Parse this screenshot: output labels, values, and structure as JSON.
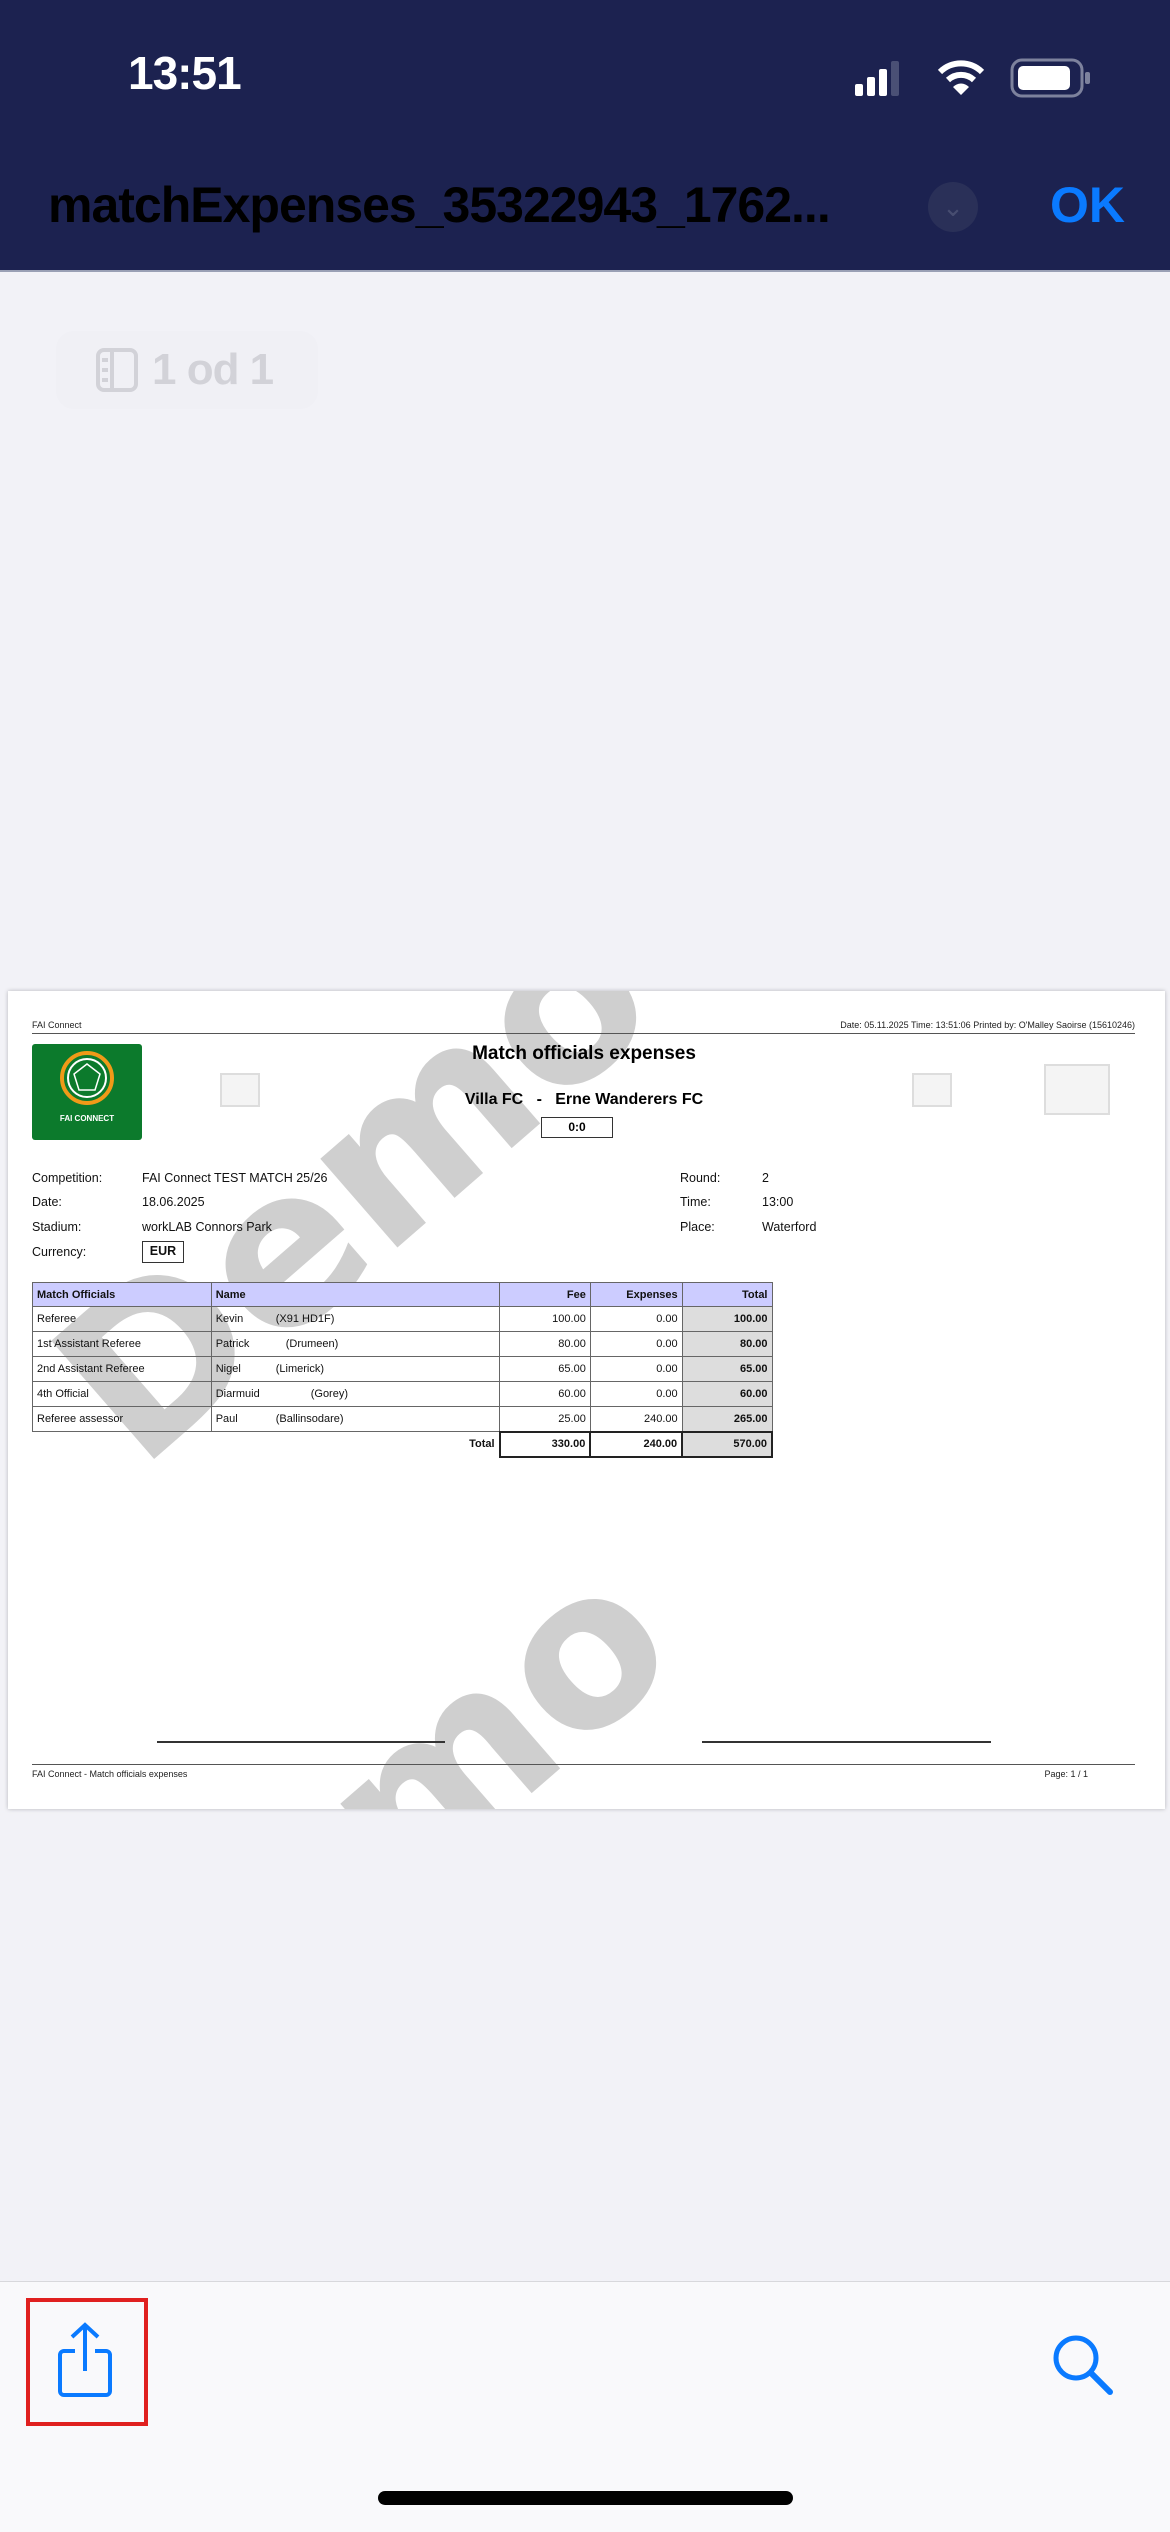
{
  "status_bar": {
    "time": "13:51"
  },
  "nav": {
    "title": "matchExpenses_35322943_1762...",
    "ok_label": "OK"
  },
  "page_indicator": {
    "label": "1 od 1"
  },
  "document": {
    "header_left": "FAI Connect",
    "header_right": "Date: 05.11.2025  Time: 13:51:06    Printed by: O'Malley Saoirse (15610246)",
    "logo_text": "FAI CONNECT",
    "title": "Match officials expenses",
    "home_team": "Villa FC",
    "separator": "-",
    "away_team": "Erne Wanderers FC",
    "score": "0:0",
    "info_left": [
      {
        "label": "Competition:",
        "value": "FAI Connect TEST MATCH 25/26"
      },
      {
        "label": "Date:",
        "value": "18.06.2025"
      },
      {
        "label": "Stadium:",
        "value": "workLAB Connors Park"
      },
      {
        "label": "Currency:",
        "value": "EUR"
      }
    ],
    "info_right": [
      {
        "label": "Round:",
        "value": "2"
      },
      {
        "label": "Time:",
        "value": "13:00"
      },
      {
        "label": "Place:",
        "value": "Waterford"
      }
    ],
    "table": {
      "headers": [
        "Match Officials",
        "Name",
        "Fee",
        "Expenses",
        "Total"
      ],
      "rows": [
        {
          "role": "Referee",
          "name": "Kevin",
          "place": "(X91 HD1F)",
          "fee": "100.00",
          "expenses": "0.00",
          "total": "100.00"
        },
        {
          "role": "1st Assistant Referee",
          "name": "Patrick",
          "place": "(Drumeen)",
          "fee": "80.00",
          "expenses": "0.00",
          "total": "80.00"
        },
        {
          "role": "2nd Assistant Referee",
          "name": "Nigel",
          "place": "(Limerick)",
          "fee": "65.00",
          "expenses": "0.00",
          "total": "65.00"
        },
        {
          "role": "4th Official",
          "name": "Diarmuid",
          "place": "(Gorey)",
          "fee": "60.00",
          "expenses": "0.00",
          "total": "60.00"
        },
        {
          "role": "Referee assessor",
          "name": "Paul",
          "place": "(Ballinsodare)",
          "fee": "25.00",
          "expenses": "240.00",
          "total": "265.00"
        }
      ],
      "total_label": "Total",
      "total_fee": "330.00",
      "total_expenses": "240.00",
      "total_total": "570.00"
    },
    "footer_left": "FAI Connect - Match officials expenses",
    "footer_right": "Page: 1 / 1",
    "watermark": "Demo"
  },
  "toolbar": {
    "share_icon": "share-icon",
    "search_icon": "search-icon",
    "highlight_color": "#e0201f"
  },
  "colors": {
    "nav_bg": "#1c2250",
    "accent": "#0a7aff",
    "table_header": "#ccccff"
  }
}
